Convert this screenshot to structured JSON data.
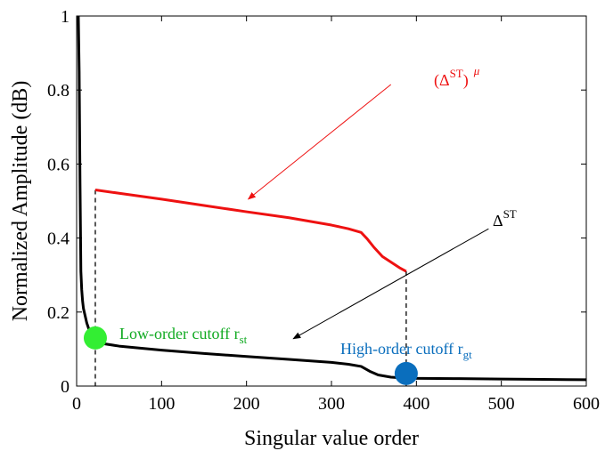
{
  "chart_data": {
    "type": "line",
    "xlabel": "Singular value order",
    "ylabel": "Normalized Amplitude (dB)",
    "xlim": [
      0,
      600
    ],
    "ylim": [
      0,
      1
    ],
    "xticks": [
      "0",
      "100",
      "200",
      "300",
      "400",
      "500",
      "600"
    ],
    "yticks": [
      "0",
      "0.2",
      "0.4",
      "0.6",
      "0.8",
      "1"
    ],
    "grid": false,
    "series": [
      {
        "color": "#000000",
        "x": [
          2,
          3,
          4,
          5,
          6,
          7,
          8,
          10,
          12,
          15,
          18,
          22,
          30,
          50,
          100,
          150,
          200,
          250,
          300,
          320,
          335,
          345,
          355,
          370,
          390,
          450,
          500,
          550,
          600
        ],
        "y": [
          1.0,
          0.85,
          0.55,
          0.31,
          0.26,
          0.23,
          0.21,
          0.19,
          0.17,
          0.15,
          0.135,
          0.125,
          0.115,
          0.108,
          0.097,
          0.088,
          0.08,
          0.072,
          0.064,
          0.059,
          0.053,
          0.04,
          0.03,
          0.024,
          0.021,
          0.02,
          0.019,
          0.018,
          0.017
        ]
      },
      {
        "color": "#ee1111",
        "x": [
          22,
          50,
          100,
          150,
          200,
          250,
          300,
          320,
          335,
          342,
          350,
          360,
          370,
          380,
          388
        ],
        "y": [
          0.53,
          0.521,
          0.505,
          0.488,
          0.471,
          0.455,
          0.435,
          0.425,
          0.415,
          0.398,
          0.375,
          0.35,
          0.335,
          0.32,
          0.31
        ]
      }
    ],
    "cutoff_markers": [
      {
        "x": 22,
        "y": 0.13,
        "color": "#33ee33",
        "dashed_top": 0.53
      },
      {
        "x": 388,
        "y": 0.034,
        "color": "#0a6ebd",
        "dashed_top": 0.31
      }
    ],
    "annotations": [
      {
        "base": "(Δ",
        "sup": "ST",
        "tail": ")",
        "sup2": "μ",
        "color": "#ee1111",
        "arrow_from": [
          370,
          0.815
        ],
        "arrow_to": [
          202,
          0.505
        ]
      },
      {
        "base": "Δ",
        "sup": "ST",
        "tail": "",
        "sup2": "",
        "color": "#000000",
        "arrow_from": [
          485,
          0.425
        ],
        "arrow_to": [
          255,
          0.128
        ]
      }
    ],
    "labels": [
      {
        "base": "Low-order cutoff r",
        "sub": "st",
        "color": "#11aa22"
      },
      {
        "base": "High-order cutoff r",
        "sub": "gt",
        "color": "#0a6ebd"
      }
    ]
  }
}
